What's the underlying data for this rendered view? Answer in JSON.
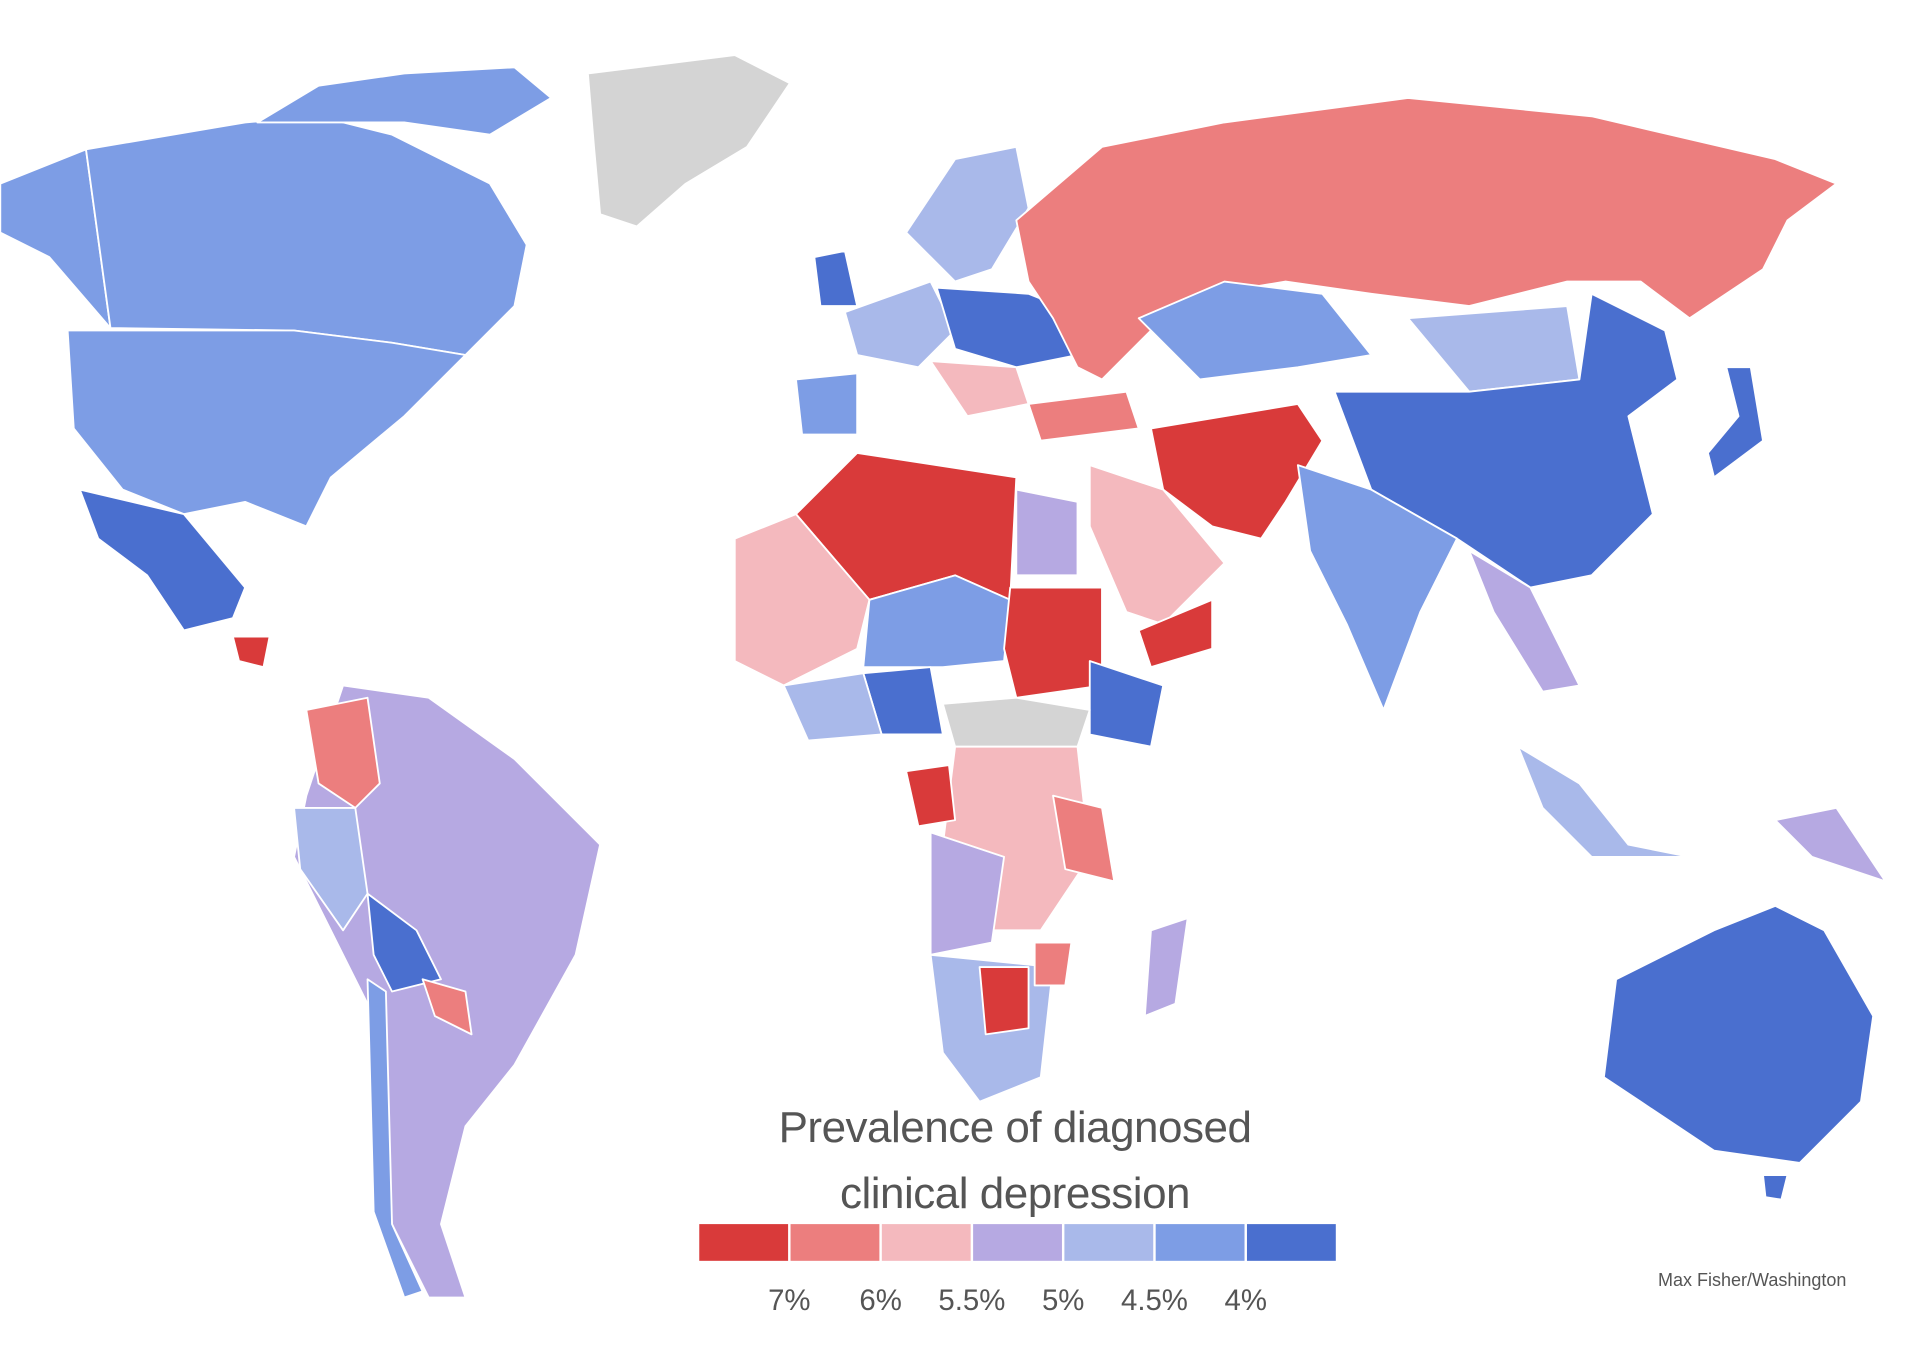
{
  "title": "Prevalence of diagnosed clinical depression",
  "legend": {
    "colors": [
      "#d93a3a",
      "#ec7e7e",
      "#f4b9be",
      "#b6a9e2",
      "#a9b9ea",
      "#7d9de5",
      "#4a6fcf"
    ],
    "labels": [
      "7%",
      "6%",
      "5.5%",
      "5%",
      "4.5%",
      "4%"
    ]
  },
  "credit": "Max Fisher/Washington"
}
